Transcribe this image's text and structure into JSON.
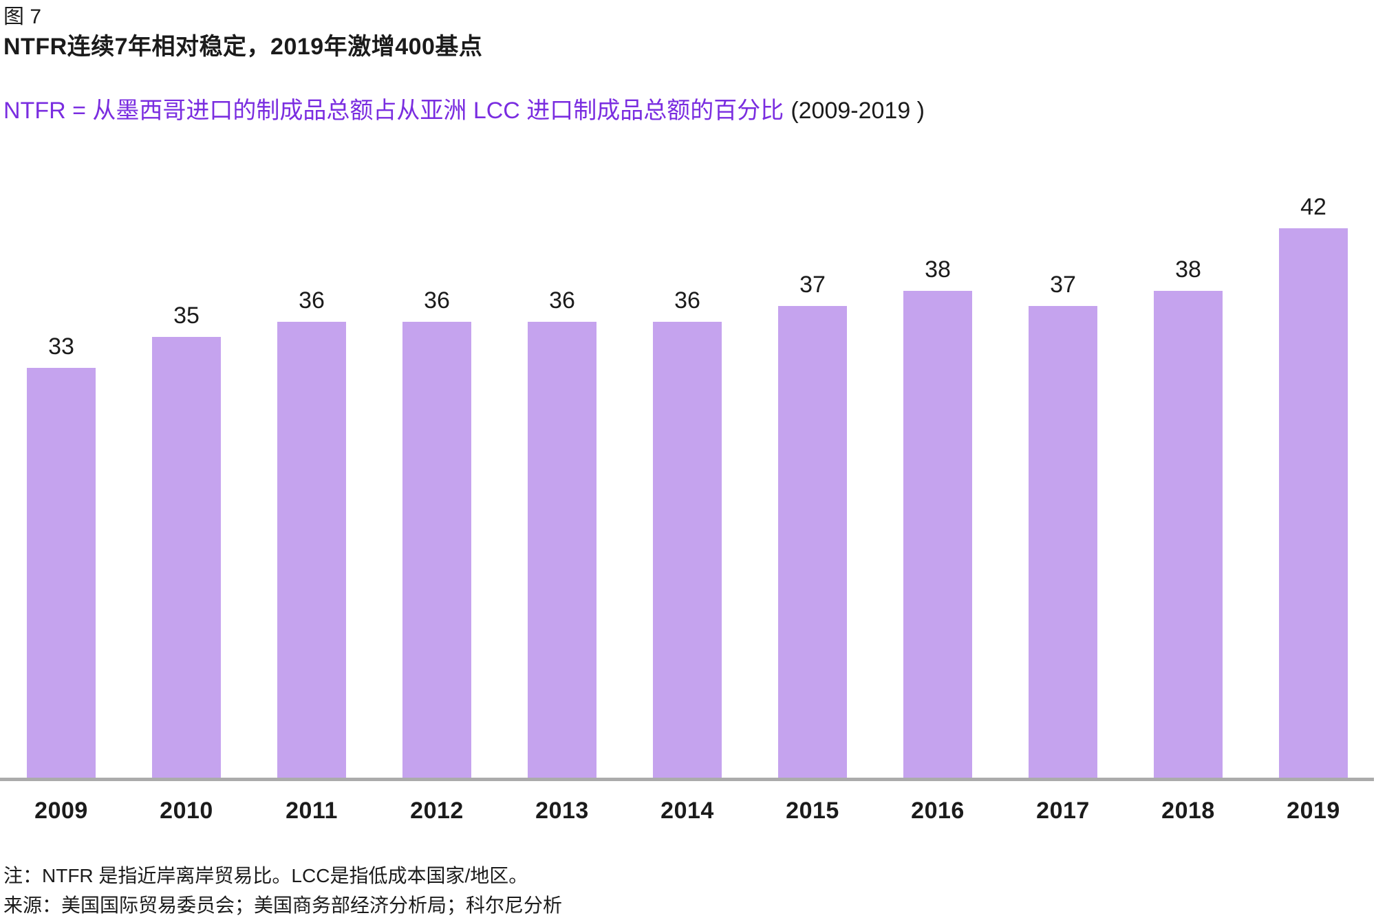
{
  "figure": {
    "label": "图 7",
    "title": "NTFR连续7年相对稳定，2019年激增400基点",
    "subtitle": "NTFR = 从墨西哥进口的制成品总额占从亚洲 LCC 进口制成品总额的百分比",
    "subtitle_suffix": "(2009-2019 )"
  },
  "chart_data": {
    "type": "bar",
    "title": "NTFR连续7年相对稳定，2019年激增400基点",
    "subtitle": "NTFR = 从墨西哥进口的制成品总额占从亚洲 LCC 进口制成品总额的百分比 (2009-2019 )",
    "categories": [
      "2009",
      "2010",
      "2011",
      "2012",
      "2013",
      "2014",
      "2015",
      "2016",
      "2017",
      "2018",
      "2019"
    ],
    "values": [
      33,
      35,
      36,
      36,
      36,
      36,
      37,
      38,
      37,
      38,
      42
    ],
    "xlabel": "",
    "ylabel": "",
    "ylim": [
      6.6,
      46.1
    ],
    "grid": false,
    "legend": false,
    "bar_value_labels": true
  },
  "notes": {
    "note": "注：NTFR 是指近岸离岸贸易比。LCC是指低成本国家/地区。",
    "source": "来源：美国国际贸易委员会；美国商务部经济分析局；科尔尼分析"
  },
  "colors": {
    "bar_fill": "#C5A3EE",
    "accent_text": "#7A2DE0",
    "axis_line": "#ABABAB",
    "text": "#1B1B1B"
  }
}
